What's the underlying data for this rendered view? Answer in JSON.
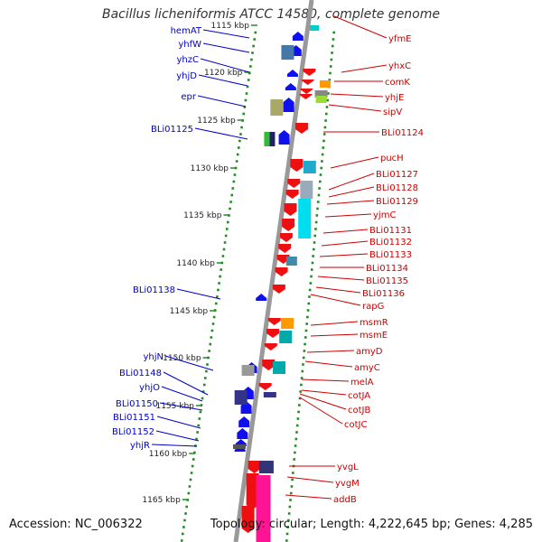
{
  "title": "Bacillus licheniformis ATCC 14580, complete genome",
  "footer": {
    "accession": "Accession: NC_006322",
    "summary": "Topology: circular; Length: 4,222,645 bp; Genes: 4,285"
  },
  "colors": {
    "left_label": "#0000cc",
    "right_label": "#cc0000",
    "backbone": "#999999",
    "dots": "#228b22",
    "forward_arrow": "#1010ee",
    "reverse_arrow": "#ee1010"
  },
  "ticks": [
    {
      "label": "1115 kbp",
      "kbp": 1115
    },
    {
      "label": "1120 kbp",
      "kbp": 1120
    },
    {
      "label": "1125 kbp",
      "kbp": 1125
    },
    {
      "label": "1130 kbp",
      "kbp": 1130
    },
    {
      "label": "1135 kbp",
      "kbp": 1135
    },
    {
      "label": "1140 kbp",
      "kbp": 1140
    },
    {
      "label": "1145 kbp",
      "kbp": 1145
    },
    {
      "label": "1150 kbp",
      "kbp": 1150
    },
    {
      "label": "1155 kbp",
      "kbp": 1155
    },
    {
      "label": "1160 kbp",
      "kbp": 1160
    },
    {
      "label": "1165 kbp",
      "kbp": 1165
    }
  ],
  "left_genes": [
    "hemAT",
    "yhfW",
    "yhzC",
    "yhjD",
    "epr",
    "BLi01125",
    "BLi01138",
    "yhjN",
    "BLi01148",
    "yhjO",
    "BLi01150",
    "BLi01151",
    "BLi01152",
    "yhjR"
  ],
  "right_genes": [
    "yfmE",
    "yhxC",
    "comK",
    "yhjE",
    "sipV",
    "BLi01124",
    "pucH",
    "BLi01127",
    "BLi01128",
    "BLi01129",
    "yjmC",
    "BLi01131",
    "BLi01132",
    "BLi01133",
    "BLi01134",
    "BLi01135",
    "BLi01136",
    "rapG",
    "msmR",
    "msmE",
    "amyD",
    "amyC",
    "melA",
    "cotJA",
    "cotJB",
    "cotJC",
    "yvgL",
    "yvgM",
    "addB"
  ]
}
